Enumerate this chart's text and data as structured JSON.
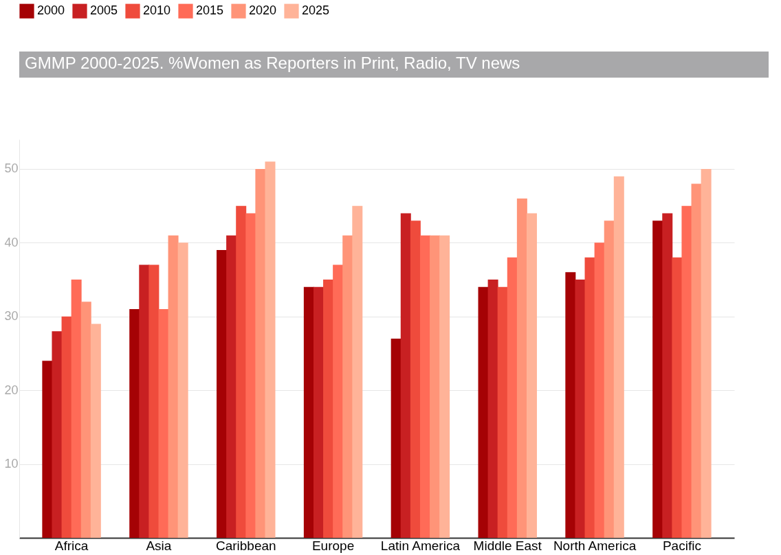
{
  "chart_data": {
    "type": "bar",
    "title": "GMMP 2000-2025. %Women as Reporters in Print, Radio, TV news",
    "categories": [
      "Africa",
      "Asia",
      "Caribbean",
      "Europe",
      "Latin America",
      "Middle East",
      "North America",
      "Pacific"
    ],
    "series": [
      {
        "name": "2000",
        "color": "#a50205",
        "values": [
          24,
          31,
          39,
          34,
          27,
          34,
          36,
          43
        ]
      },
      {
        "name": "2005",
        "color": "#c82022",
        "values": [
          28,
          37,
          41,
          34,
          44,
          35,
          35,
          44
        ]
      },
      {
        "name": "2010",
        "color": "#ef4b3c",
        "values": [
          30,
          37,
          45,
          35,
          43,
          34,
          38,
          38
        ]
      },
      {
        "name": "2015",
        "color": "#ff6b57",
        "values": [
          35,
          31,
          44,
          37,
          41,
          38,
          40,
          45
        ]
      },
      {
        "name": "2020",
        "color": "#ff9478",
        "values": [
          32,
          41,
          50,
          41,
          41,
          46,
          43,
          48
        ]
      },
      {
        "name": "2025",
        "color": "#ffb398",
        "values": [
          29,
          40,
          51,
          45,
          41,
          44,
          49,
          50
        ]
      }
    ],
    "ylim": [
      0,
      54
    ],
    "yticks": [
      10,
      20,
      30,
      40,
      50
    ],
    "grid": "y",
    "legend": "top left"
  }
}
